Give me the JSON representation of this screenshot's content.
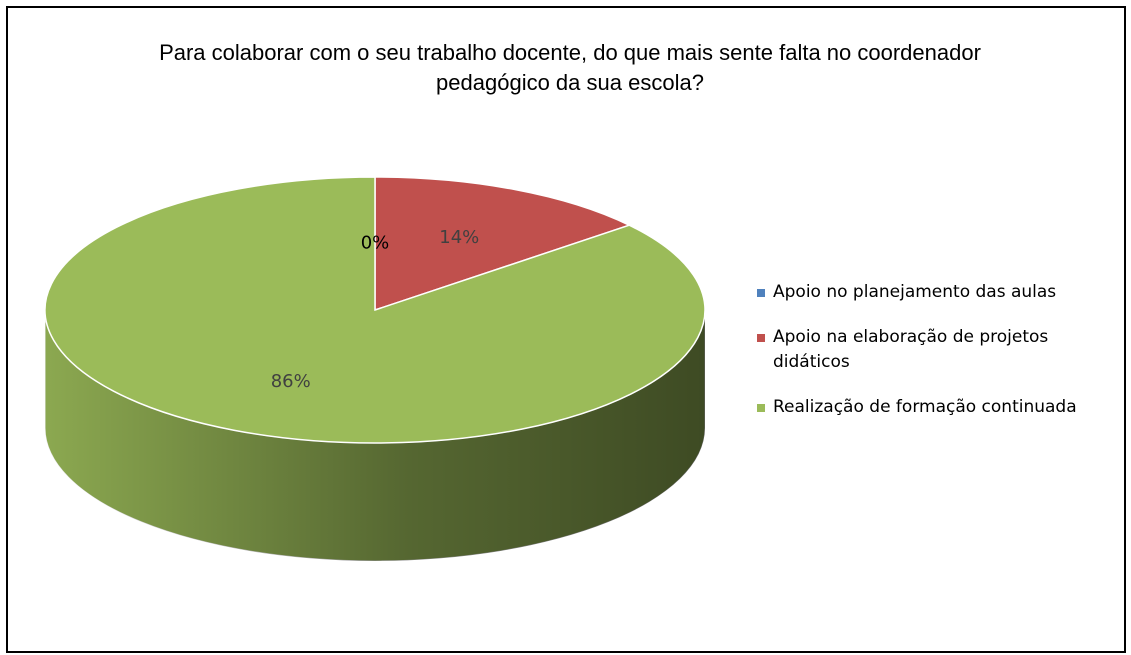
{
  "chart_data": {
    "type": "pie",
    "title": "Para colaborar com o seu trabalho docente, do que mais sente falta no coordenador pedagógico da sua escola?",
    "categories": [
      "Apoio no planejamento das aulas",
      "Apoio na elaboração de projetos didáticos",
      "Realização de formação continuada"
    ],
    "values": [
      0,
      14,
      86
    ],
    "value_labels": [
      "0%",
      "14%",
      "86%"
    ],
    "colors": [
      "#4f81bd",
      "#c0504d",
      "#9bbb59"
    ],
    "legend": "right"
  }
}
